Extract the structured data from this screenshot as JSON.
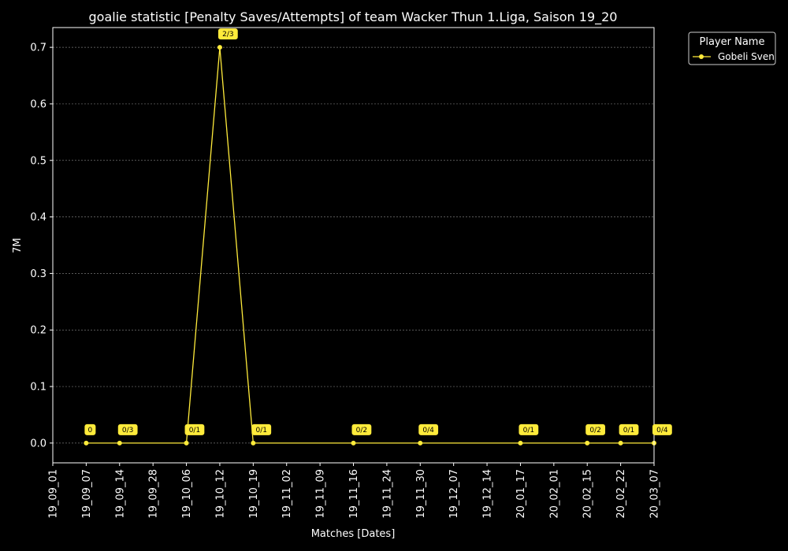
{
  "chart_data": {
    "type": "line",
    "title": "goalie statistic [Penalty Saves/Attempts] of team Wacker Thun 1.Liga, Saison 19_20",
    "xlabel": "Matches [Dates]",
    "ylabel": "7M",
    "x_ticks": [
      "19_09_01",
      "19_09_07",
      "19_09_14",
      "19_09_28",
      "19_10_06",
      "19_10_12",
      "19_10_19",
      "19_11_02",
      "19_11_09",
      "19_11_16",
      "19_11_24",
      "19_11_30",
      "19_12_07",
      "19_12_14",
      "20_01_17",
      "20_02_01",
      "20_02_15",
      "20_02_22",
      "20_03_07"
    ],
    "y_ticks": [
      "0.0",
      "0.1",
      "0.2",
      "0.3",
      "0.4",
      "0.5",
      "0.6",
      "0.7"
    ],
    "ylim": [
      -0.035,
      0.735
    ],
    "grid": true,
    "legend": {
      "title": "Player Name",
      "placement": "outside-top-right"
    },
    "series": [
      {
        "name": "Gobeli Sven",
        "color": "#ffeb3b",
        "points": [
          {
            "x": "19_09_07",
            "y": 0.0,
            "label": "0"
          },
          {
            "x": "19_09_14",
            "y": 0.0,
            "label": "0/3"
          },
          {
            "x": "19_10_06",
            "y": 0.0,
            "label": "0/1"
          },
          {
            "x": "19_10_12",
            "y": 0.7,
            "label": "2/3"
          },
          {
            "x": "19_10_19",
            "y": 0.0,
            "label": "0/1"
          },
          {
            "x": "19_11_16",
            "y": 0.0,
            "label": "0/2"
          },
          {
            "x": "19_11_30",
            "y": 0.0,
            "label": "0/4"
          },
          {
            "x": "20_01_17",
            "y": 0.0,
            "label": "0/1"
          },
          {
            "x": "20_02_15",
            "y": 0.0,
            "label": "0/2"
          },
          {
            "x": "20_02_22",
            "y": 0.0,
            "label": "0/1"
          },
          {
            "x": "20_03_07",
            "y": 0.0,
            "label": "0/4"
          }
        ]
      }
    ]
  }
}
